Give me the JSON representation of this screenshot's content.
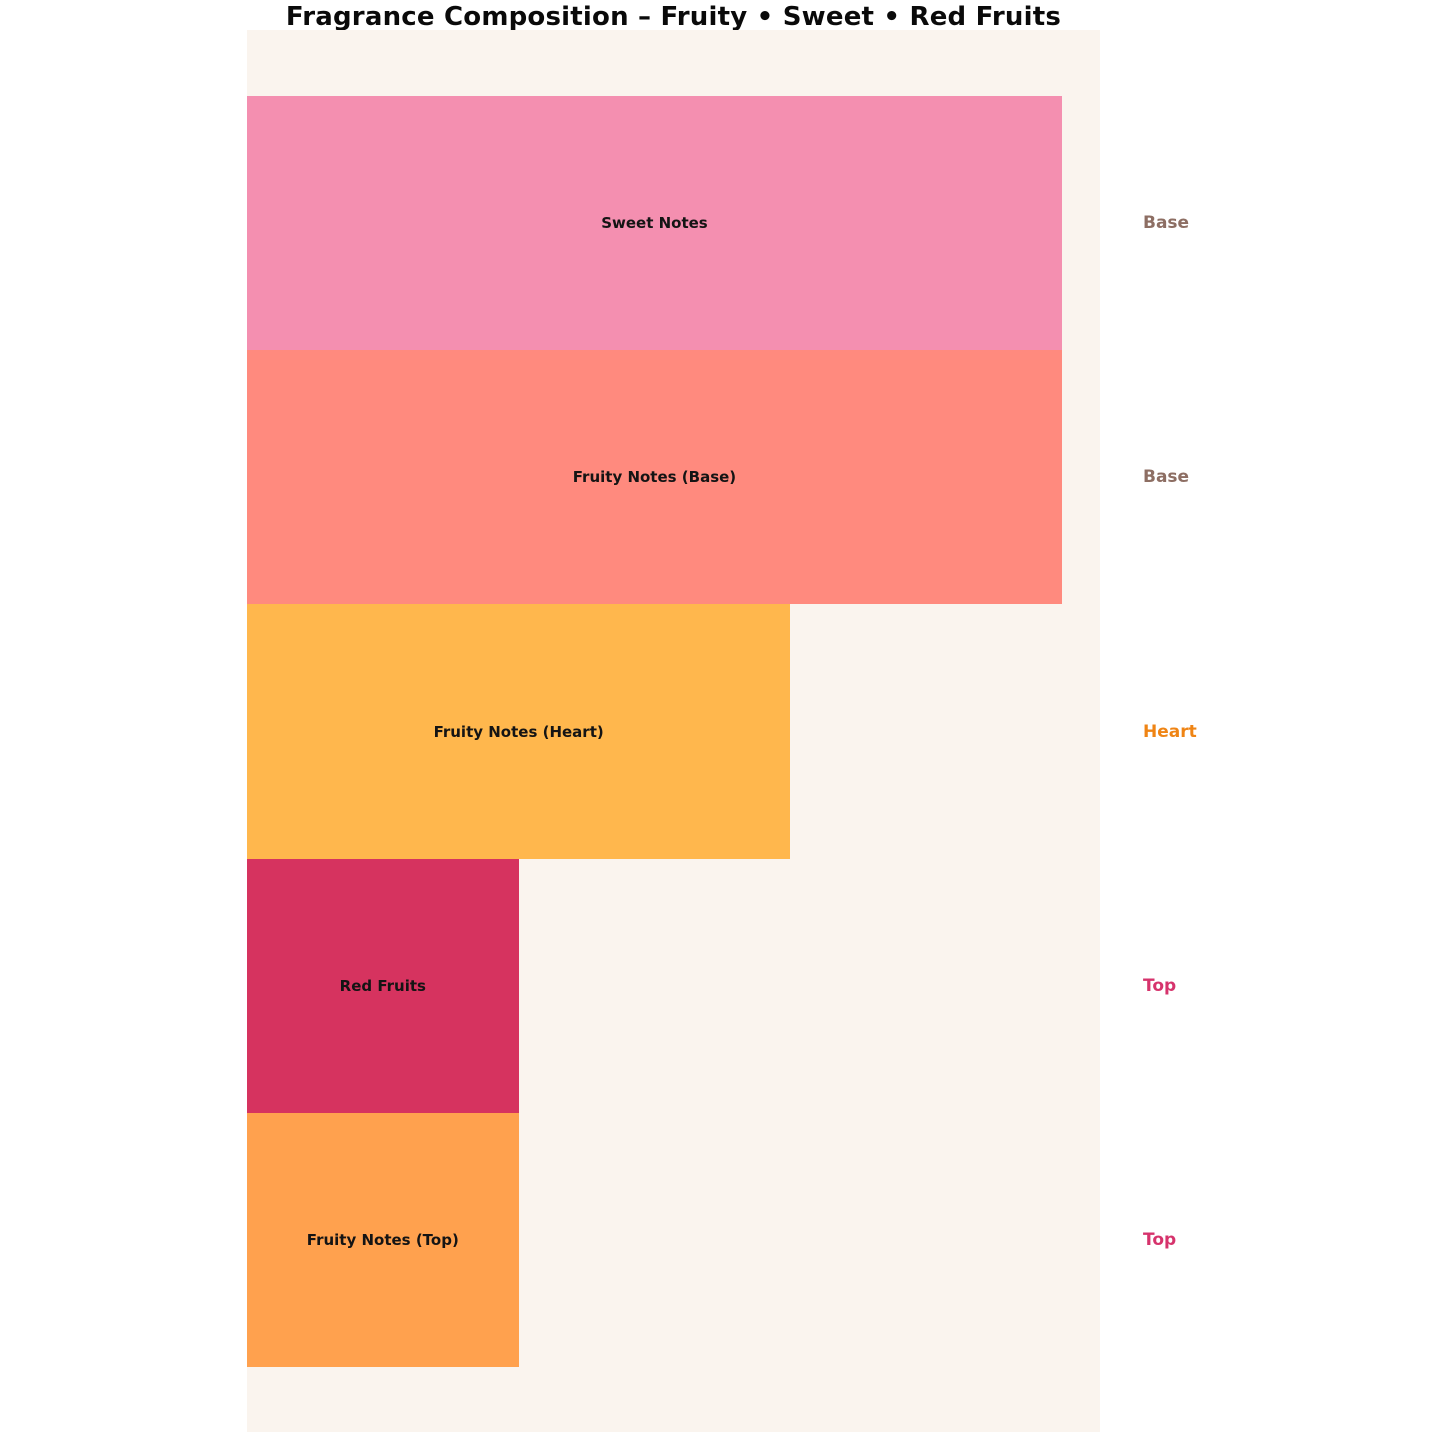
{
  "chart_data": {
    "type": "bar",
    "orientation": "horizontal",
    "title": "Fragrance Composition – Fruity • Sweet • Red Fruits",
    "plot_background": "#faf4ee",
    "page_background": "#ffffff",
    "xlim": [
      0,
      3.14
    ],
    "grid": false,
    "legend": "none",
    "categories": [
      "Sweet Notes",
      "Fruity Notes (Base)",
      "Fruity Notes (Heart)",
      "Red Fruits",
      "Fruity Notes (Top)"
    ],
    "values": [
      3,
      3,
      2,
      1,
      1
    ],
    "bars": [
      {
        "label": "Sweet Notes",
        "value": 3,
        "color": "#f48fb0",
        "stage": "Base",
        "stage_color": "#8d6e63"
      },
      {
        "label": "Fruity Notes (Base)",
        "value": 3,
        "color": "#ff8a7e",
        "stage": "Base",
        "stage_color": "#8d6e63"
      },
      {
        "label": "Fruity Notes (Heart)",
        "value": 2,
        "color": "#ffb74d",
        "stage": "Heart",
        "stage_color": "#ef8414"
      },
      {
        "label": "Red Fruits",
        "value": 1,
        "color": "#d6335f",
        "stage": "Top",
        "stage_color": "#d6336c"
      },
      {
        "label": "Fruity Notes (Top)",
        "value": 1,
        "color": "#ffa14e",
        "stage": "Top",
        "stage_color": "#d6336c"
      }
    ]
  }
}
